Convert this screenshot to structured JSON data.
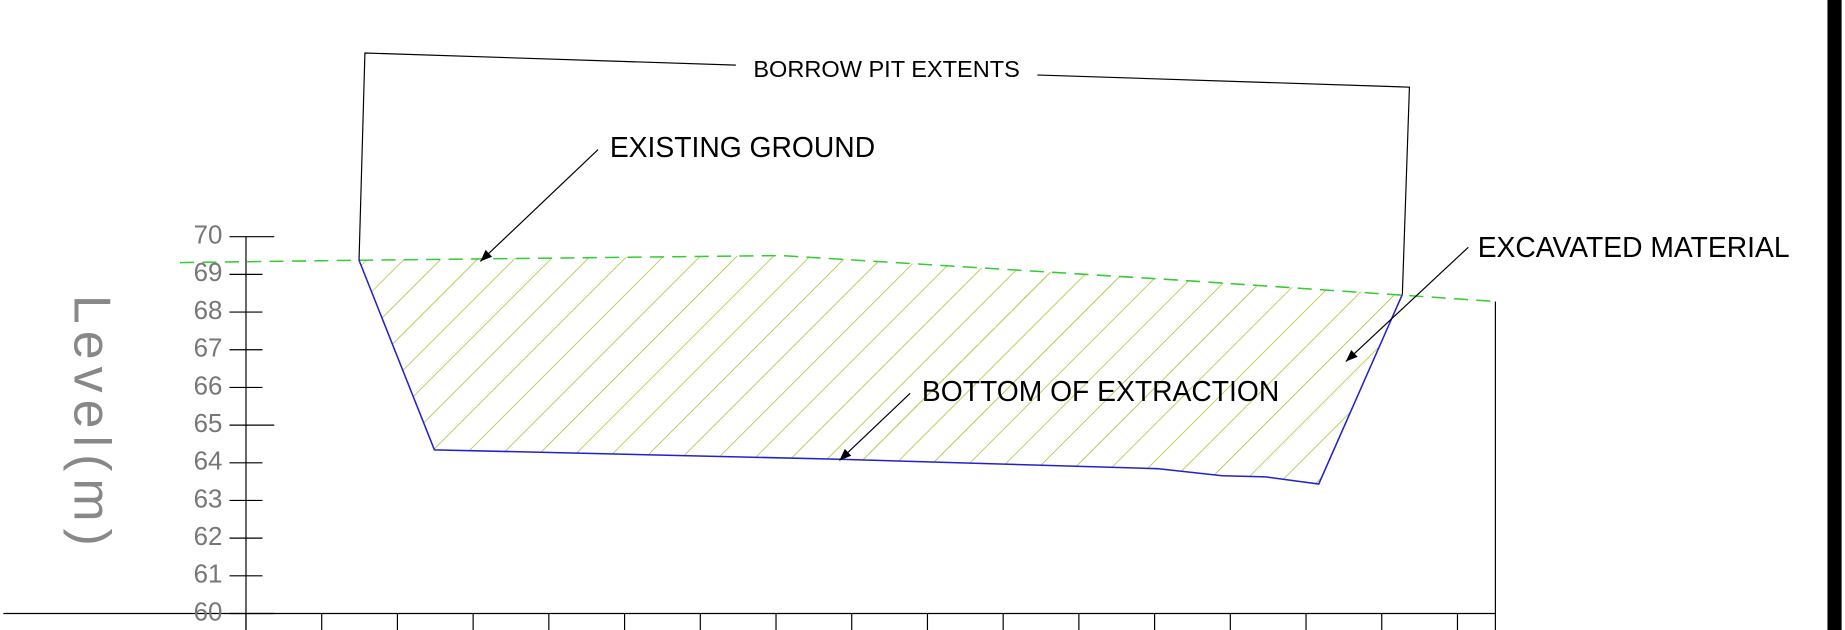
{
  "title": "BORROW PIT EXTENTS",
  "annotations": {
    "existing_ground": "EXISTING GROUND",
    "bottom": "BOTTOM OF EXTRACTION",
    "excavated": "EXCAVATED MATERIAL"
  },
  "axis": {
    "label": "Level(m)",
    "ylim": [
      60,
      70
    ],
    "yticks": [
      60,
      61,
      62,
      63,
      64,
      65,
      66,
      67,
      68,
      69,
      70
    ]
  }
}
